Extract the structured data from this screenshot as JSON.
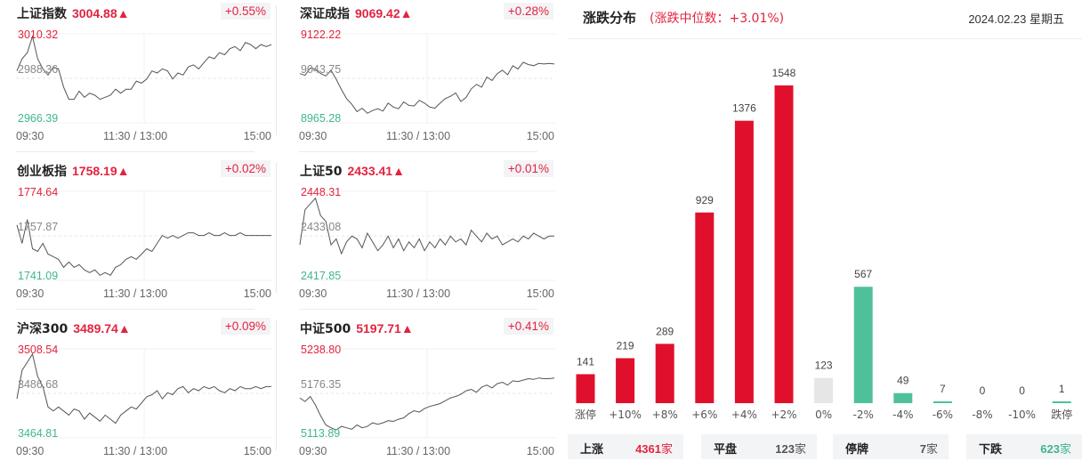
{
  "indices": [
    {
      "name": "上证指数",
      "value": "3004.88▲",
      "change": "+0.55%",
      "high": "3010.32",
      "mid": "2988.36",
      "low": "2966.39",
      "times": [
        "09:30",
        "11:30 / 13:00",
        "15:00"
      ],
      "series": [
        2992,
        2998,
        3001,
        3009,
        2998,
        2993,
        2990,
        2994,
        2993,
        2984,
        2978,
        2978,
        2982,
        2979,
        2981,
        2980,
        2978,
        2979,
        2980,
        2983,
        2981,
        2983,
        2983,
        2987,
        2986,
        2988,
        2992,
        2991,
        2993,
        2992,
        2988,
        2991,
        2990,
        2994,
        2995,
        2993,
        2996,
        2999,
        2998,
        3001,
        3000,
        3003,
        3004,
        3002,
        3006,
        3005,
        3003,
        3005,
        3004,
        3005
      ]
    },
    {
      "name": "深证成指",
      "value": "9069.42▲",
      "change": "+0.28%",
      "high": "9122.22",
      "mid": "9043.75",
      "low": "8965.28",
      "times": [
        "09:30",
        "11:30 / 13:00",
        "15:00"
      ],
      "series": [
        9052,
        9049,
        9062,
        9060,
        9052,
        9048,
        9058,
        9042,
        9024,
        9008,
        8998,
        8985,
        8991,
        8982,
        8987,
        8990,
        8986,
        9000,
        8993,
        8990,
        9002,
        8996,
        8995,
        9005,
        9000,
        8993,
        8991,
        9000,
        9008,
        9012,
        9018,
        9003,
        9010,
        9025,
        9033,
        9028,
        9046,
        9040,
        9052,
        9058,
        9050,
        9066,
        9060,
        9072,
        9068,
        9066,
        9070,
        9069,
        9070,
        9069
      ]
    },
    {
      "name": "创业板指",
      "value": "1758.19▲",
      "change": "+0.02%",
      "high": "1774.64",
      "mid": "1757.87",
      "low": "1741.09",
      "times": [
        "09:30",
        "11:30 / 13:00",
        "15:00"
      ],
      "series": [
        1762,
        1755,
        1764,
        1753,
        1752,
        1755,
        1751,
        1750,
        1749,
        1746,
        1748,
        1746,
        1747,
        1745,
        1744,
        1745,
        1743,
        1744,
        1743,
        1746,
        1747,
        1749,
        1750,
        1749,
        1751,
        1753,
        1752,
        1755,
        1758,
        1757,
        1758,
        1757,
        1758,
        1759,
        1759,
        1758,
        1758,
        1759,
        1758,
        1758,
        1759,
        1758,
        1758,
        1759,
        1758,
        1758,
        1758,
        1758,
        1758,
        1758
      ]
    },
    {
      "name": "上证50",
      "value": "2433.41▲",
      "change": "+0.01%",
      "high": "2448.31",
      "mid": "2433.08",
      "low": "2417.85",
      "times": [
        "09:30",
        "11:30 / 13:00",
        "15:00"
      ],
      "series": [
        2430,
        2442,
        2444,
        2446,
        2440,
        2438,
        2430,
        2432,
        2427,
        2431,
        2433,
        2432,
        2429,
        2434,
        2431,
        2428,
        2430,
        2433,
        2429,
        2432,
        2428,
        2431,
        2429,
        2432,
        2428,
        2431,
        2429,
        2432,
        2430,
        2433,
        2431,
        2432,
        2430,
        2435,
        2433,
        2431,
        2434,
        2432,
        2433,
        2430,
        2431,
        2432,
        2431,
        2433,
        2432,
        2434,
        2433,
        2432,
        2433,
        2433
      ]
    },
    {
      "name": "沪深300",
      "value": "3489.74▲",
      "change": "+0.09%",
      "high": "3508.54",
      "mid": "3486.68",
      "low": "3464.81",
      "times": [
        "09:30",
        "11:30 / 13:00",
        "15:00"
      ],
      "series": [
        3484,
        3498,
        3502,
        3506,
        3495,
        3490,
        3480,
        3478,
        3480,
        3478,
        3476,
        3479,
        3478,
        3474,
        3477,
        3475,
        3473,
        3476,
        3474,
        3472,
        3476,
        3478,
        3480,
        3479,
        3482,
        3485,
        3486,
        3488,
        3484,
        3487,
        3486,
        3489,
        3490,
        3487,
        3489,
        3488,
        3490,
        3489,
        3490,
        3488,
        3487,
        3489,
        3488,
        3490,
        3489,
        3489,
        3490,
        3489,
        3490,
        3490
      ]
    },
    {
      "name": "中证500",
      "value": "5197.71▲",
      "change": "+0.41%",
      "high": "5238.80",
      "mid": "5176.35",
      "low": "5113.89",
      "times": [
        "09:30",
        "11:30 / 13:00",
        "15:00"
      ],
      "series": [
        5170,
        5165,
        5172,
        5160,
        5145,
        5132,
        5128,
        5125,
        5130,
        5128,
        5126,
        5132,
        5128,
        5130,
        5135,
        5133,
        5135,
        5138,
        5137,
        5140,
        5142,
        5148,
        5152,
        5150,
        5155,
        5158,
        5160,
        5162,
        5166,
        5170,
        5172,
        5175,
        5180,
        5182,
        5178,
        5185,
        5188,
        5184,
        5190,
        5192,
        5188,
        5194,
        5193,
        5195,
        5197,
        5196,
        5198,
        5197,
        5197,
        5198
      ]
    }
  ],
  "distribution": {
    "title": "涨跌分布",
    "median_label": "(涨跌中位数：+3.01%)",
    "date": "2024.02.23 星期五",
    "summary": [
      {
        "label": "上涨",
        "count": "4361",
        "unit": "家"
      },
      {
        "label": "平盘",
        "count": "123",
        "unit": "家"
      },
      {
        "label": "停牌",
        "count": "7",
        "unit": "家"
      },
      {
        "label": "下跌",
        "count": "623",
        "unit": "家"
      }
    ]
  },
  "chart_data": {
    "type": "bar",
    "title": "涨跌分布",
    "categories": [
      "涨停",
      "+10%",
      "+8%",
      "+6%",
      "+4%",
      "+2%",
      "0%",
      "-2%",
      "-4%",
      "-6%",
      "-8%",
      "-10%",
      "跌停"
    ],
    "values": [
      141,
      219,
      289,
      929,
      1376,
      1548,
      123,
      567,
      49,
      7,
      0,
      0,
      1
    ],
    "colors": [
      "#e0102c",
      "#e0102c",
      "#e0102c",
      "#e0102c",
      "#e0102c",
      "#e0102c",
      "#e6e6e6",
      "#4fc19a",
      "#4fc19a",
      "#4fc19a",
      "#4fc19a",
      "#4fc19a",
      "#4fc19a"
    ],
    "ylim": [
      0,
      1548
    ]
  },
  "colors": {
    "up": "#e2233e",
    "down": "#3fb68e",
    "flat": "#e6e6e6",
    "bar_up": "#e0102c",
    "bar_down": "#4fc19a"
  }
}
